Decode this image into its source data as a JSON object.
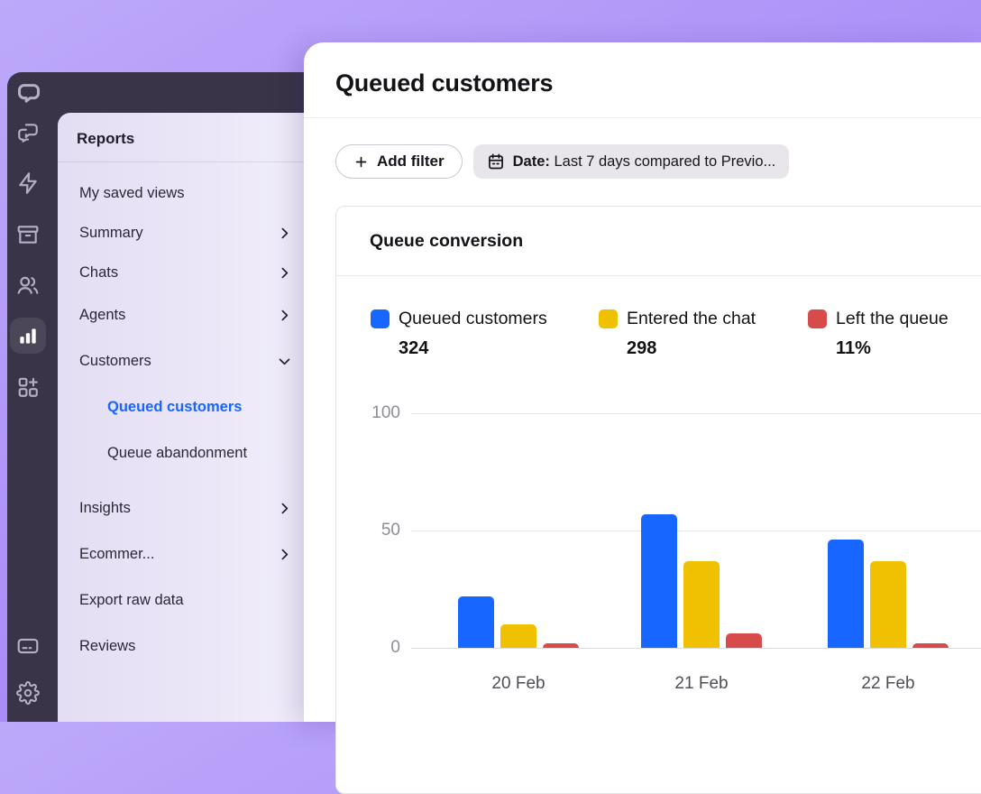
{
  "nav_rail": {
    "icons": [
      {
        "name": "livechat-logo-icon"
      },
      {
        "name": "chats-icon"
      },
      {
        "name": "automation-icon"
      },
      {
        "name": "archives-icon"
      },
      {
        "name": "team-icon"
      },
      {
        "name": "reports-icon",
        "active": true
      },
      {
        "name": "apps-icon"
      },
      {
        "name": "billing-icon"
      },
      {
        "name": "settings-icon"
      }
    ]
  },
  "sidebar": {
    "title": "Reports",
    "items": [
      {
        "label": "My saved views",
        "chevron": "none"
      },
      {
        "label": "Summary",
        "chevron": "right"
      },
      {
        "label": "Chats",
        "chevron": "right"
      },
      {
        "label": "Agents",
        "chevron": "right"
      },
      {
        "label": "Customers",
        "chevron": "down"
      },
      {
        "label": "Queued customers",
        "chevron": "none",
        "indent": true,
        "active": true
      },
      {
        "label": "Queue abandonment",
        "chevron": "none",
        "indent": true
      },
      {
        "label": "Insights",
        "chevron": "right",
        "gap_before": true
      },
      {
        "label": "Ecommer...",
        "chevron": "right"
      },
      {
        "label": "Export raw data",
        "chevron": "none"
      },
      {
        "label": "Reviews",
        "chevron": "none"
      }
    ]
  },
  "main": {
    "title": "Queued customers",
    "filters": {
      "add_filter_label": "Add filter",
      "date_filter": {
        "prefix": "Date:",
        "value": "Last 7 days compared to Previo..."
      }
    },
    "card": {
      "title": "Queue conversion",
      "legend": [
        {
          "label": "Queued customers",
          "value": "324",
          "color": "#1766ff"
        },
        {
          "label": "Entered the chat",
          "value": "298",
          "color": "#efc100"
        },
        {
          "label": "Left the queue",
          "value": "11%",
          "color": "#d84b4b"
        }
      ]
    }
  },
  "chart_data": {
    "type": "bar",
    "title": "Queue conversion",
    "categories": [
      "20 Feb",
      "21 Feb",
      "22 Feb"
    ],
    "series": [
      {
        "name": "Queued customers",
        "color": "#1766ff",
        "values": [
          22,
          57,
          46
        ]
      },
      {
        "name": "Entered the chat",
        "color": "#efc100",
        "values": [
          10,
          37,
          37
        ]
      },
      {
        "name": "Left the queue",
        "color": "#d84b4b",
        "values": [
          2,
          6,
          2
        ]
      }
    ],
    "ylim": [
      0,
      100
    ],
    "yticks": [
      0,
      50,
      100
    ],
    "grid": true,
    "legend_position": "top"
  },
  "colors": {
    "accent_blue": "#1766ff",
    "series_yellow": "#efc100",
    "series_red": "#d84b4b",
    "background_purple": "#ab90f7",
    "nav_rail_dark": "#393447",
    "sidebar_lavender": "#e7e1f6",
    "card_border": "#e4e3e9"
  }
}
